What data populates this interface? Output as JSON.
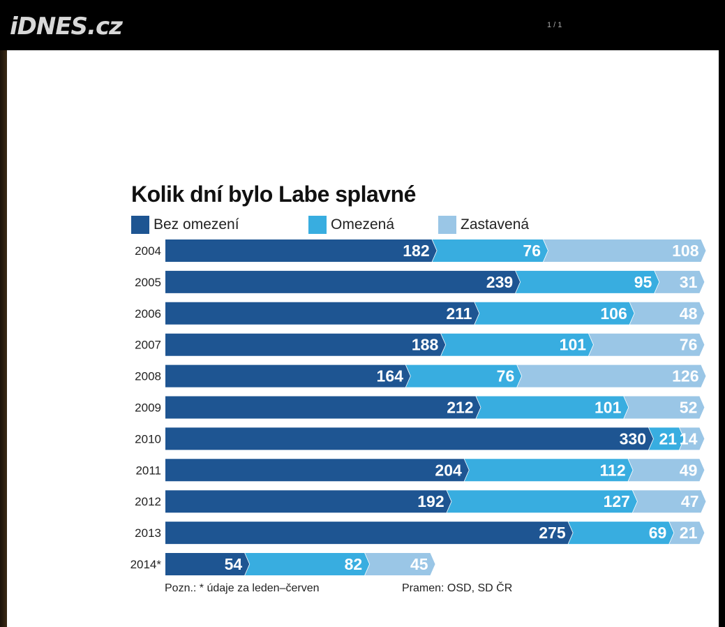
{
  "header": {
    "logo": "iDNES.cz",
    "page_counter": "1 / 1"
  },
  "chart_data": {
    "type": "bar",
    "stacked": true,
    "orientation": "horizontal",
    "title": "Kolik dní bylo Labe splavné",
    "categories": [
      "2004",
      "2005",
      "2006",
      "2007",
      "2008",
      "2009",
      "2010",
      "2011",
      "2012",
      "2013",
      "2014*"
    ],
    "series": [
      {
        "name": "Bez omezení",
        "color": "#1e5592",
        "values": [
          182,
          239,
          211,
          188,
          164,
          212,
          330,
          204,
          192,
          275,
          54
        ]
      },
      {
        "name": "Omezená",
        "color": "#38ade0",
        "values": [
          76,
          95,
          106,
          101,
          76,
          101,
          21,
          112,
          127,
          69,
          82
        ]
      },
      {
        "name": "Zastavená",
        "color": "#9ac6e6",
        "values": [
          108,
          31,
          48,
          76,
          126,
          52,
          14,
          49,
          47,
          21,
          45
        ]
      }
    ],
    "note": "Pozn.: * údaje za leden–červen",
    "source": "Pramen: OSD, SD ČR",
    "grid": false,
    "legend_position": "top"
  }
}
